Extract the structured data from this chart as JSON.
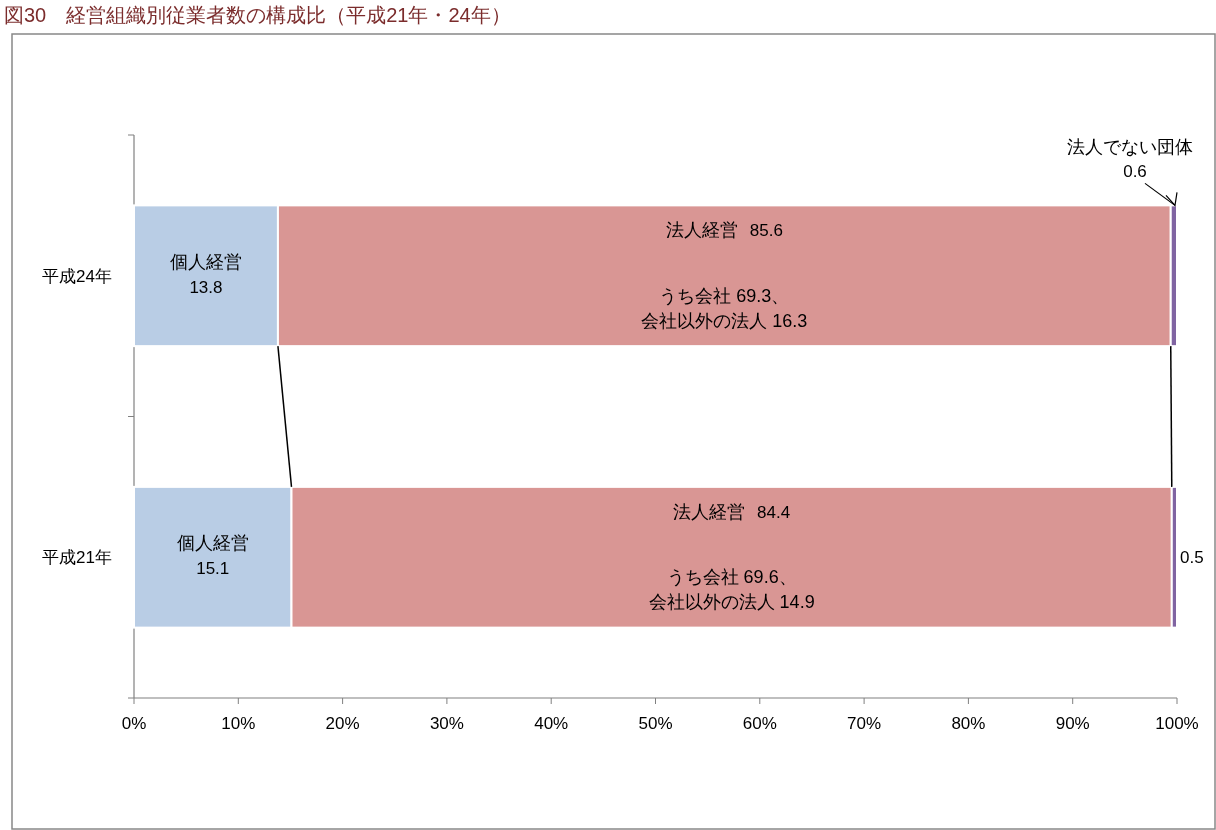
{
  "chart_data": {
    "type": "bar",
    "orientation": "horizontal",
    "stacked": true,
    "title": "図30　経営組織別従業者数の構成比（平成21年・24年）",
    "categories": [
      "平成24年",
      "平成21年"
    ],
    "series": [
      {
        "name": "個人経営",
        "color": "#b9cde5",
        "values": [
          13.8,
          15.1
        ],
        "value_labels": [
          "13.8",
          "15.1"
        ]
      },
      {
        "name": "法人経営",
        "color": "#d99694",
        "values": [
          85.6,
          84.4
        ],
        "value_labels": [
          "85.6",
          "84.4"
        ]
      },
      {
        "name": "法人でない団体",
        "color": "#8064a2",
        "values": [
          0.6,
          0.5
        ],
        "value_labels": [
          "0.6",
          "0.5"
        ]
      }
    ],
    "annotations": [
      "うち会社  69.3、",
      "会社以外の法人  16.3",
      "うち会社  69.6、",
      "会社以外の法人  14.9"
    ],
    "xlim": [
      0,
      100
    ],
    "xticks": [
      {
        "value": 0,
        "label": "0%"
      },
      {
        "value": 10,
        "label": "10%"
      },
      {
        "value": 20,
        "label": "20%"
      },
      {
        "value": 30,
        "label": "30%"
      },
      {
        "value": 40,
        "label": "40%"
      },
      {
        "value": 50,
        "label": "50%"
      },
      {
        "value": 60,
        "label": "60%"
      },
      {
        "value": 70,
        "label": "70%"
      },
      {
        "value": 80,
        "label": "80%"
      },
      {
        "value": 90,
        "label": "90%"
      },
      {
        "value": 100,
        "label": "100%"
      }
    ],
    "grid": false,
    "legend": false
  }
}
